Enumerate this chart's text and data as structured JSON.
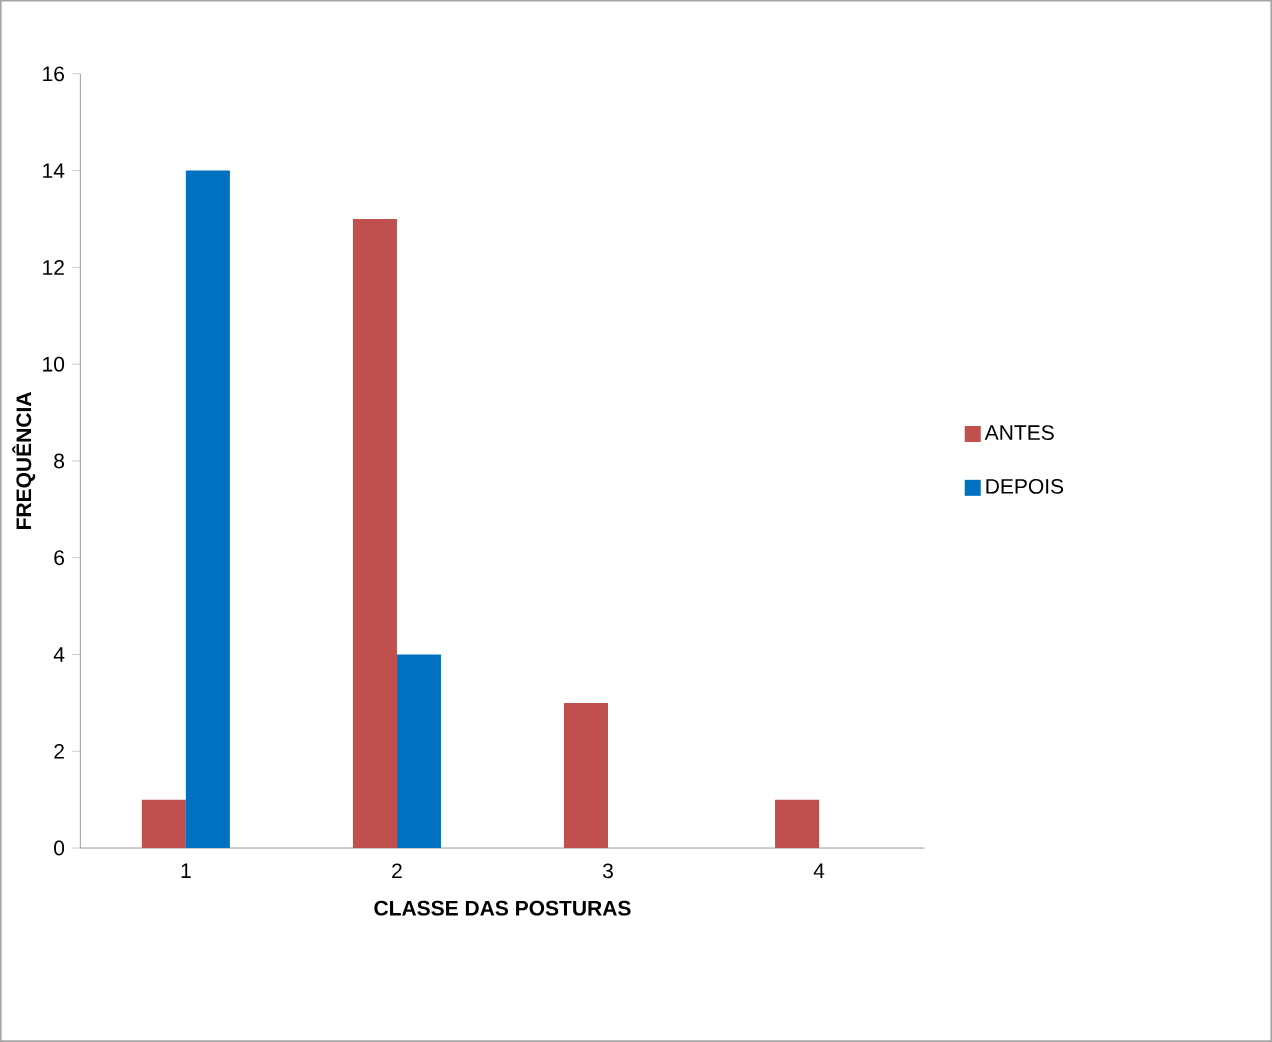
{
  "chart_data": {
    "type": "bar",
    "xlabel": "CLASSE DAS POSTURAS",
    "ylabel": "FREQUÊNCIA",
    "categories": [
      "1",
      "2",
      "3",
      "4"
    ],
    "series": [
      {
        "name": "ANTES",
        "color": "#c0504d",
        "values": [
          1,
          13,
          3,
          1
        ]
      },
      {
        "name": "DEPOIS",
        "color": "#0070c0",
        "values": [
          14,
          4,
          0,
          0
        ]
      }
    ],
    "ylim": [
      0,
      16
    ],
    "yticks": [
      0,
      2,
      4,
      6,
      8,
      10,
      12,
      14,
      16
    ],
    "legend": "right"
  }
}
